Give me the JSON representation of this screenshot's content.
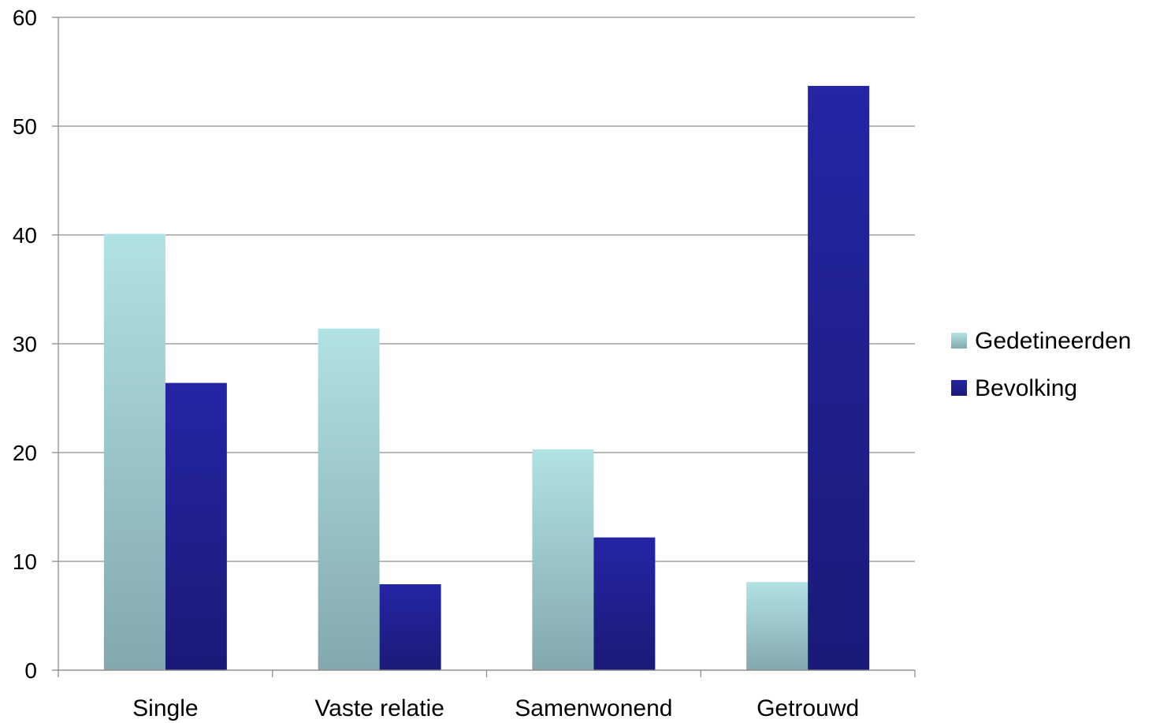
{
  "chart_data": {
    "type": "bar",
    "categories": [
      "Single",
      "Vaste relatie",
      "Samenwonend",
      "Getrouwd"
    ],
    "series": [
      {
        "name": "Gedetineerden",
        "values": [
          40.1,
          31.4,
          20.3,
          8.1
        ],
        "color_top": "#b1e2e4",
        "color_bottom": "#84a8ab"
      },
      {
        "name": "Bevolking",
        "values": [
          26.4,
          7.9,
          12.2,
          53.7
        ],
        "color_top": "#2525a5",
        "color_bottom": "#1a1a78"
      }
    ],
    "ylim": [
      0,
      60
    ],
    "yticks": [
      "0",
      "10",
      "20",
      "30",
      "40",
      "50",
      "60"
    ],
    "grid": true,
    "legend_position": "right",
    "title": "",
    "xlabel": "",
    "ylabel": ""
  }
}
